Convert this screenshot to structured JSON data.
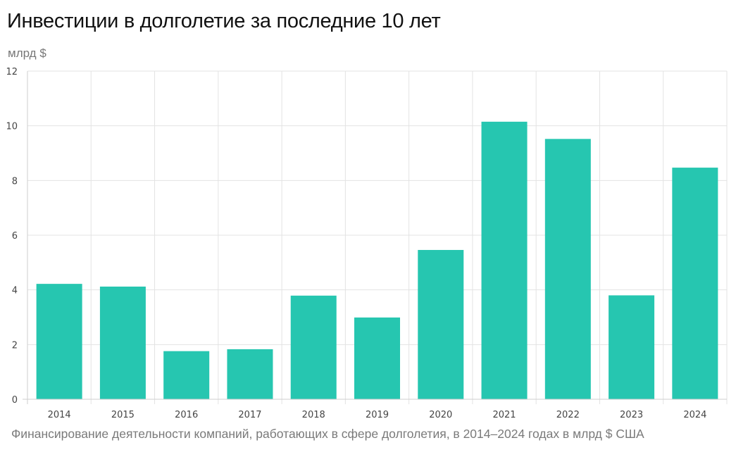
{
  "chart_data": {
    "type": "bar",
    "title": "Инвестиции в долголетие за последние 10 лет",
    "unit_label": "млрд $",
    "caption": "Финансирование деятельности компаний, работающих в сфере долголетия, в 2014–2024 годах в млрд $ США",
    "categories": [
      "2014",
      "2015",
      "2016",
      "2017",
      "2018",
      "2019",
      "2020",
      "2021",
      "2022",
      "2023",
      "2024"
    ],
    "values": [
      4.22,
      4.12,
      1.76,
      1.83,
      3.79,
      2.99,
      5.46,
      10.15,
      9.52,
      3.8,
      8.47
    ],
    "ylim": [
      0,
      12
    ],
    "yticks": [
      0,
      2,
      4,
      6,
      8,
      10,
      12
    ],
    "grid": true,
    "bar_color": "#26c6b0"
  }
}
